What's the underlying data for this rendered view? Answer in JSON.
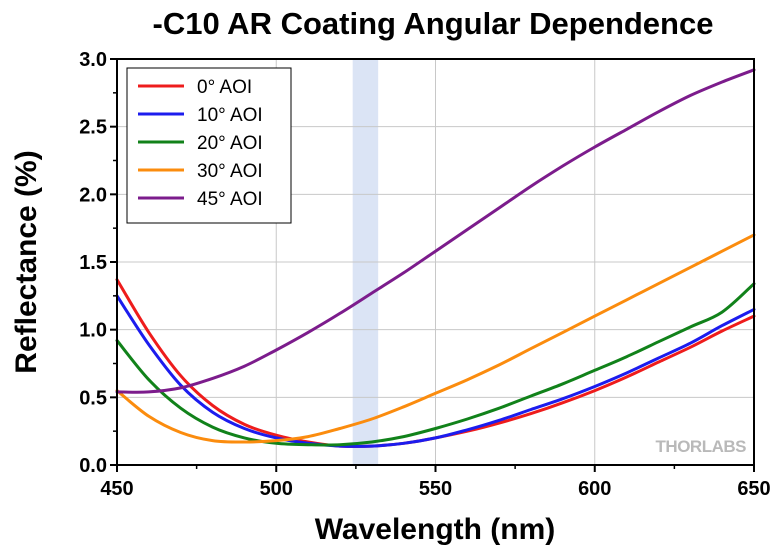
{
  "chart_data": {
    "type": "line",
    "title": "-C10 AR Coating Angular Dependence",
    "xlabel": "Wavelength (nm)",
    "ylabel": "Reflectance (%)",
    "xlim": [
      450,
      650
    ],
    "ylim": [
      0,
      3.0
    ],
    "xticks": [
      "450",
      "500",
      "550",
      "600",
      "650"
    ],
    "yticks": [
      "0.0",
      "0.5",
      "1.0",
      "1.5",
      "2.0",
      "2.5",
      "3.0"
    ],
    "grid": true,
    "legend_position": "top-left",
    "highlight_band": {
      "x_start": 524,
      "x_end": 532,
      "color": "#dbe4f5"
    },
    "watermark": "THORLABS",
    "x": [
      450,
      460,
      470,
      480,
      490,
      500,
      510,
      520,
      530,
      540,
      550,
      560,
      570,
      580,
      590,
      600,
      610,
      620,
      630,
      640,
      650
    ],
    "series": [
      {
        "name": "0° AOI",
        "color": "#ee1c1c",
        "values": [
          1.37,
          0.98,
          0.66,
          0.44,
          0.3,
          0.22,
          0.17,
          0.14,
          0.14,
          0.16,
          0.2,
          0.25,
          0.31,
          0.38,
          0.46,
          0.55,
          0.65,
          0.76,
          0.87,
          0.99,
          1.1
        ]
      },
      {
        "name": "10° AOI",
        "color": "#1c1cee",
        "values": [
          1.25,
          0.89,
          0.59,
          0.39,
          0.27,
          0.2,
          0.16,
          0.14,
          0.14,
          0.16,
          0.2,
          0.26,
          0.33,
          0.41,
          0.49,
          0.58,
          0.68,
          0.79,
          0.9,
          1.03,
          1.15
        ]
      },
      {
        "name": "20° AOI",
        "color": "#11821a",
        "values": [
          0.92,
          0.63,
          0.42,
          0.28,
          0.2,
          0.16,
          0.15,
          0.15,
          0.17,
          0.21,
          0.27,
          0.34,
          0.42,
          0.51,
          0.6,
          0.7,
          0.8,
          0.91,
          1.02,
          1.13,
          1.34
        ]
      },
      {
        "name": "30° AOI",
        "color": "#fb8c0e",
        "values": [
          0.55,
          0.36,
          0.24,
          0.18,
          0.17,
          0.18,
          0.21,
          0.27,
          0.34,
          0.43,
          0.53,
          0.63,
          0.74,
          0.86,
          0.98,
          1.1,
          1.22,
          1.34,
          1.46,
          1.58,
          1.7
        ]
      },
      {
        "name": "45° AOI",
        "color": "#7c1c8c",
        "values": [
          0.54,
          0.54,
          0.57,
          0.64,
          0.73,
          0.85,
          0.98,
          1.12,
          1.27,
          1.42,
          1.58,
          1.74,
          1.9,
          2.06,
          2.21,
          2.35,
          2.48,
          2.61,
          2.73,
          2.83,
          2.92
        ]
      }
    ]
  }
}
